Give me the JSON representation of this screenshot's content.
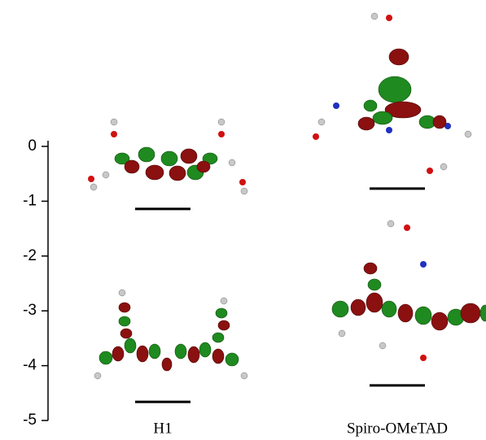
{
  "chart_data": {
    "type": "energy-level",
    "categories": [
      "H1",
      "Spiro-OMeTAD"
    ],
    "series": [
      {
        "color": "#000000",
        "values": [
          -1.14,
          -0.77
        ]
      },
      {
        "color": "#000000",
        "values": [
          -4.66,
          -4.36
        ]
      }
    ],
    "ylim": [
      -5,
      0
    ],
    "yticks": [
      0,
      -1,
      -2,
      -3,
      -4,
      -5
    ]
  }
}
